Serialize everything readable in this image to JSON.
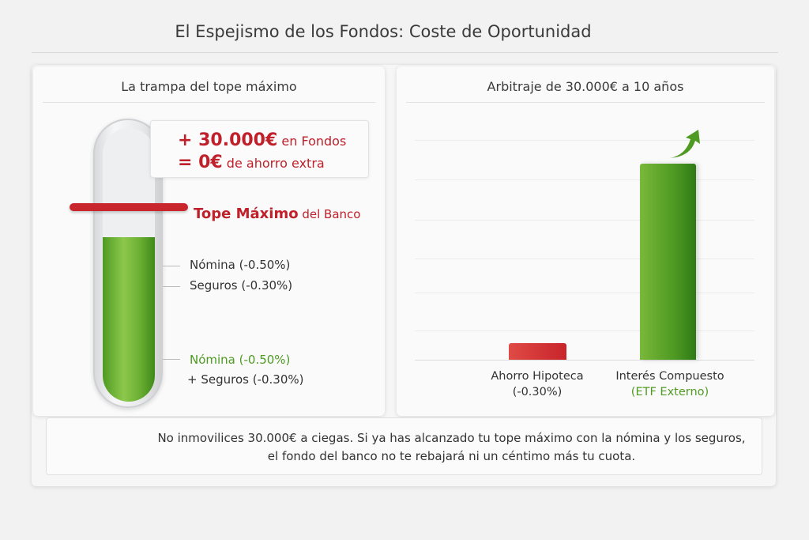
{
  "title": "El Espejismo de los Fondos: Coste de Oportunidad",
  "left_panel": {
    "title": "La trampa del tope máximo",
    "callout": {
      "line1_amount": "+ 30.000€",
      "line1_rest": " en Fondos",
      "line2_amount": "= 0€",
      "line2_rest": " de ahorro extra"
    },
    "cap_label": {
      "strong": "Tope Máximo",
      "rest": " del Banco"
    },
    "levels": [
      "Nómina (-0.50%)",
      "Seguros (-0.30%)"
    ],
    "combined": {
      "line1": "Nómina (-0.50%)",
      "line2": "+ Seguros (-0.30%)"
    }
  },
  "right_panel": {
    "title": "Arbitraje de 30.000€ a 10 años",
    "bars": [
      {
        "line1": "Ahorro Hipoteca",
        "line2": "(-0.30%)",
        "color": "#c8242a"
      },
      {
        "line1": "Interés Compuesto",
        "line2": "(ETF Externo)",
        "color": "#4f9a23"
      }
    ]
  },
  "footer": {
    "line1": "No inmovilices 30.000€ a ciegas. Si ya has alcanzado tu tope máximo con la nómina y los seguros,",
    "line2": "el fondo del banco no te rebajará ni un céntimo más tu cuota."
  },
  "colors": {
    "red": "#c0202a",
    "green": "#4f9a23"
  }
}
